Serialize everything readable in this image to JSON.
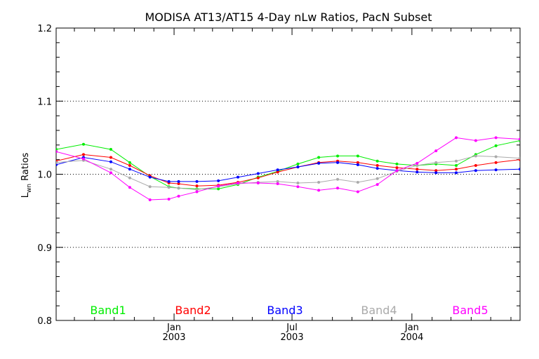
{
  "chart_data": {
    "type": "line",
    "title": "MODISA AT13/AT15 4-Day nLw Ratios, PacN Subset",
    "ylabel_main": "L",
    "ylabel_sub": "wn",
    "ylabel_rest": " Ratios",
    "ylim": [
      0.8,
      1.2
    ],
    "yticks": [
      0.8,
      0.9,
      1.0,
      1.1,
      1.2
    ],
    "ytick_labels": [
      "0.8",
      "0.9",
      "1.0",
      "1.1",
      "1.2"
    ],
    "grid_y": [
      0.9,
      1.0,
      1.1
    ],
    "xlim": [
      "2002-07-04",
      "2004-06-15"
    ],
    "xticks": [
      {
        "date": "2003-01-01",
        "line1": "Jan",
        "line2": "2003"
      },
      {
        "date": "2003-07-01",
        "line1": "Jul",
        "line2": "2003"
      },
      {
        "date": "2004-01-01",
        "line1": "Jan",
        "line2": "2004"
      }
    ],
    "minor_xticks": [
      "2002-08-01",
      "2002-09-01",
      "2002-10-01",
      "2002-11-01",
      "2002-12-01",
      "2003-02-01",
      "2003-03-01",
      "2003-04-01",
      "2003-05-01",
      "2003-06-01",
      "2003-08-01",
      "2003-09-01",
      "2003-10-01",
      "2003-11-01",
      "2003-12-01",
      "2004-02-01",
      "2004-03-01",
      "2004-04-01",
      "2004-05-01",
      "2004-06-01"
    ],
    "x": [
      "2002-07-04",
      "2002-08-15",
      "2002-09-26",
      "2002-10-25",
      "2002-11-25",
      "2002-12-24",
      "2003-01-08",
      "2003-02-05",
      "2003-03-10",
      "2003-04-09",
      "2003-05-10",
      "2003-06-09",
      "2003-07-10",
      "2003-08-11",
      "2003-09-09",
      "2003-10-10",
      "2003-11-09",
      "2003-12-09",
      "2004-01-09",
      "2004-02-07",
      "2004-03-09",
      "2004-04-08",
      "2004-05-09",
      "2004-06-15"
    ],
    "series": [
      {
        "name": "Band1",
        "color": "#00ee00",
        "values": [
          1.034,
          1.041,
          1.034,
          1.016,
          0.997,
          0.983,
          0.981,
          0.98,
          0.98,
          0.986,
          0.996,
          1.004,
          1.014,
          1.023,
          1.025,
          1.025,
          1.018,
          1.014,
          1.012,
          1.014,
          1.012,
          1.027,
          1.039,
          1.046
        ]
      },
      {
        "name": "Band2",
        "color": "#ff0000",
        "values": [
          1.018,
          1.027,
          1.023,
          1.012,
          0.998,
          0.988,
          0.987,
          0.984,
          0.985,
          0.989,
          0.995,
          1.003,
          1.01,
          1.016,
          1.018,
          1.016,
          1.012,
          1.009,
          1.007,
          1.005,
          1.007,
          1.012,
          1.016,
          1.02
        ]
      },
      {
        "name": "Band3",
        "color": "#0000ff",
        "values": [
          1.013,
          1.023,
          1.017,
          1.007,
          0.996,
          0.99,
          0.99,
          0.99,
          0.991,
          0.996,
          1.001,
          1.006,
          1.01,
          1.015,
          1.016,
          1.013,
          1.008,
          1.005,
          1.003,
          1.002,
          1.002,
          1.005,
          1.006,
          1.007
        ]
      },
      {
        "name": "Band4",
        "color": "#aaaaaa",
        "values": [
          1.016,
          1.019,
          1.007,
          0.995,
          0.983,
          0.982,
          0.981,
          0.979,
          0.983,
          0.987,
          0.989,
          0.99,
          0.988,
          0.989,
          0.993,
          0.989,
          0.994,
          1.004,
          1.012,
          1.016,
          1.018,
          1.025,
          1.024,
          1.022
        ]
      },
      {
        "name": "Band5",
        "color": "#ff00ff",
        "values": [
          1.031,
          1.021,
          1.002,
          0.982,
          0.965,
          0.966,
          0.97,
          0.976,
          0.984,
          0.988,
          0.988,
          0.987,
          0.983,
          0.978,
          0.981,
          0.976,
          0.986,
          1.005,
          1.015,
          1.032,
          1.05,
          1.046,
          1.05,
          1.048
        ]
      }
    ],
    "legend_placement": "bottom"
  }
}
